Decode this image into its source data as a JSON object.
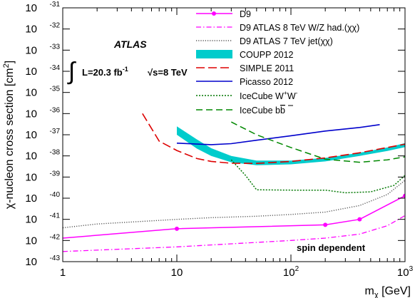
{
  "chart_data": {
    "type": "line",
    "xlabel": "m",
    "xlabel_sub": "χ",
    "xlabel_unit": " [GeV]",
    "ylabel": "χ-nucleon cross section [cm",
    "ylabel_sup": "2",
    "ylabel_end": "]",
    "xscale": "log",
    "yscale": "log",
    "xlim": [
      1,
      1000
    ],
    "ylim": [
      1e-43,
      1e-31
    ],
    "x_ticks": [
      {
        "value": 1,
        "label": "1"
      },
      {
        "value": 10,
        "label": "10"
      },
      {
        "value": 100,
        "label": "10",
        "sup": "2"
      },
      {
        "value": 1000,
        "label": "10",
        "sup": "3"
      }
    ],
    "y_ticks": [
      {
        "value": 1e-43,
        "base": "10",
        "sup": "-43"
      },
      {
        "value": 1e-42,
        "base": "10",
        "sup": "-42"
      },
      {
        "value": 1e-41,
        "base": "10",
        "sup": "-41"
      },
      {
        "value": 1e-40,
        "base": "10",
        "sup": "-40"
      },
      {
        "value": 1e-39,
        "base": "10",
        "sup": "-39"
      },
      {
        "value": 1e-38,
        "base": "10",
        "sup": "-38"
      },
      {
        "value": 1e-37,
        "base": "10",
        "sup": "-37"
      },
      {
        "value": 1e-36,
        "base": "10",
        "sup": "-36"
      },
      {
        "value": 1e-35,
        "base": "10",
        "sup": "-35"
      },
      {
        "value": 1e-34,
        "base": "10",
        "sup": "-34"
      },
      {
        "value": 1e-33,
        "base": "10",
        "sup": "-33"
      },
      {
        "value": 1e-32,
        "base": "10",
        "sup": "-32"
      },
      {
        "value": 1e-31,
        "base": "10",
        "sup": "-31"
      }
    ],
    "legend_position": "top-right",
    "annotations": {
      "atlas": "ATLAS",
      "lumi_prefix": "L=20.3 fb",
      "lumi_sup": "-1",
      "energy": "√s=8 TeV",
      "bottom_label": "spin dependent"
    },
    "series": [
      {
        "name": "D9",
        "legend": "D9",
        "color": "#ff00ff",
        "style": "solid-marker",
        "x": [
          1,
          10,
          200,
          400,
          1000
        ],
        "y": [
          1.3e-42,
          3.6e-42,
          5.5e-42,
          1e-41,
          1.3e-40
        ],
        "markers": [
          10,
          200,
          400,
          1000
        ]
      },
      {
        "name": "D9 ATLAS 8 TeV W/Z had.(χχ)",
        "legend": "D9 ATLAS 8 TeV W/Z had.(χχ)",
        "color": "#ff00ff",
        "style": "dashdot",
        "x": [
          1,
          10,
          100,
          200,
          400,
          700,
          1000
        ],
        "y": [
          3e-43,
          5e-43,
          1e-42,
          1.3e-42,
          2e-42,
          5e-42,
          1.5e-41
        ]
      },
      {
        "name": "D9 ATLAS 7 TeV jet(χχ)",
        "legend": "D9 ATLAS 7 TeV jet(χχ)",
        "color": "#555555",
        "style": "dotted",
        "x": [
          1,
          2,
          5,
          10,
          20,
          50,
          100,
          200,
          400,
          700,
          1000
        ],
        "y": [
          4e-42,
          6e-42,
          8e-42,
          1e-41,
          1.2e-41,
          1.4e-41,
          1.7e-41,
          2.2e-41,
          4.5e-41,
          1.5e-40,
          7e-40
        ]
      },
      {
        "name": "COUPP 2012",
        "legend": "COUPP 2012",
        "color": "#00cccc",
        "style": "band",
        "x": [
          10,
          15,
          20,
          30,
          50,
          100,
          200,
          400,
          700,
          1000
        ],
        "y_upper": [
          2.5e-37,
          6e-38,
          2.3e-38,
          1e-38,
          6e-39,
          6e-39,
          8e-39,
          1.4e-38,
          2.5e-38,
          4e-38
        ],
        "y_lower": [
          1e-37,
          2.2e-38,
          1e-38,
          5e-39,
          3.6e-39,
          4e-39,
          5.5e-39,
          1e-38,
          1.7e-38,
          2.6e-38
        ]
      },
      {
        "name": "SIMPLE 2011",
        "legend": "SIMPLE 2011",
        "color": "#dd0000",
        "style": "longdash",
        "x": [
          5,
          7,
          10,
          15,
          20,
          30,
          50,
          100,
          200,
          400,
          700,
          1000
        ],
        "y": [
          1e-36,
          5e-38,
          1.8e-38,
          7.5e-39,
          5.5e-39,
          4.5e-39,
          4.4e-39,
          5.5e-39,
          8e-39,
          1.4e-38,
          2.5e-38,
          3.6e-38
        ]
      },
      {
        "name": "Picasso 2012",
        "legend": "Picasso 2012",
        "color": "#0000cc",
        "style": "solid",
        "x": [
          10,
          20,
          30,
          50,
          100,
          200,
          400,
          600
        ],
        "y": [
          4e-38,
          3.4e-38,
          3.8e-38,
          5.5e-38,
          9e-38,
          1.5e-37,
          2.2e-37,
          3e-37
        ]
      },
      {
        "name": "IceCube W+W-",
        "legend": "IceCube W",
        "legend_sup1": "+",
        "legend_mid": "W",
        "legend_sup2": "-",
        "color": "#007700",
        "style": "dotted-green",
        "x": [
          30,
          40,
          50,
          100,
          200,
          300,
          500,
          800,
          1000
        ],
        "y": [
          6.5e-39,
          1.2e-39,
          2.5e-40,
          2.4e-40,
          2.4e-40,
          1.8e-40,
          2e-40,
          4e-40,
          1.2e-39
        ]
      },
      {
        "name": "IceCube bb",
        "legend": "IceCube b",
        "legend_bbar": "b",
        "color": "#008800",
        "style": "dashed",
        "x": [
          30,
          50,
          100,
          200,
          400,
          700,
          1000
        ],
        "y": [
          4e-37,
          1e-37,
          2.5e-38,
          7e-39,
          5e-39,
          6.5e-39,
          9e-39
        ]
      }
    ]
  }
}
